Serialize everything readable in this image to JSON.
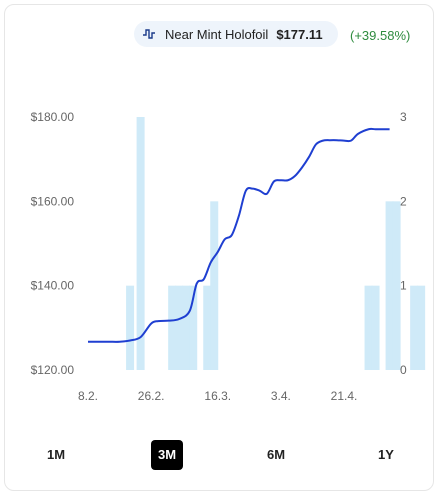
{
  "header": {
    "variant": "Near Mint Holofoil",
    "price": "$177.11",
    "change": "(+39.58%)",
    "icon": "activity-line-icon"
  },
  "ranges": [
    {
      "label": "1M",
      "active": false
    },
    {
      "label": "3M",
      "active": true
    },
    {
      "label": "6M",
      "active": false
    },
    {
      "label": "1Y",
      "active": false
    }
  ],
  "chart_data": {
    "type": "line",
    "title": "",
    "xlabel": "",
    "ylabel": "",
    "ylim": [
      120,
      180
    ],
    "y2lim": [
      0,
      3
    ],
    "grid": false,
    "y_ticks": [
      "$120.00",
      "$140.00",
      "$160.00",
      "$180.00"
    ],
    "y2_ticks": [
      "0",
      "1",
      "2",
      "3"
    ],
    "x_ticks": [
      "8.2.",
      "26.2.",
      "16.3.",
      "3.4.",
      "21.4."
    ],
    "series": [
      {
        "type": "line",
        "color": "#1f3fd1",
        "x": [
          "8.2.",
          "11.2.",
          "14.2.",
          "17.2.",
          "20.2.",
          "23.2.",
          "26.2.",
          "28.2.",
          "2.3.",
          "5.3.",
          "8.3.",
          "10.3.",
          "12.3.",
          "14.3.",
          "16.3.",
          "18.3.",
          "20.3.",
          "22.3.",
          "24.3.",
          "26.3.",
          "28.3.",
          "30.3.",
          "1.4.",
          "3.4.",
          "5.4.",
          "7.4.",
          "9.4.",
          "11.4.",
          "13.4.",
          "15.4.",
          "17.4.",
          "19.4.",
          "21.4.",
          "23.4.",
          "25.4.",
          "28.4.",
          "30.4.",
          "2.5.",
          "4.5."
        ],
        "values": [
          126.7,
          126.7,
          126.7,
          126.7,
          127.0,
          127.8,
          131.0,
          131.6,
          131.7,
          132.1,
          134.0,
          140.5,
          141.5,
          145.5,
          148.0,
          151.0,
          152.0,
          156.5,
          162.5,
          163.0,
          162.5,
          161.8,
          164.7,
          165.0,
          165.0,
          166.0,
          168.0,
          170.5,
          173.5,
          174.4,
          174.5,
          174.5,
          174.4,
          174.4,
          176.0,
          177.1,
          177.1,
          177.1,
          177.1
        ]
      },
      {
        "type": "bar",
        "color": "#cfeaf8",
        "axis": "right",
        "x": [
          "20.2.",
          "23.2.",
          "3.3.",
          "5.3.",
          "7.3.",
          "9.3.",
          "13.3.",
          "15.3.",
          "28.4.",
          "30.4.",
          "4.5.",
          "6.5.",
          "11.5.",
          "13.5."
        ],
        "values": [
          1,
          3,
          1,
          1,
          1,
          1,
          1,
          2,
          1,
          1,
          2,
          2,
          1,
          1
        ]
      }
    ]
  }
}
